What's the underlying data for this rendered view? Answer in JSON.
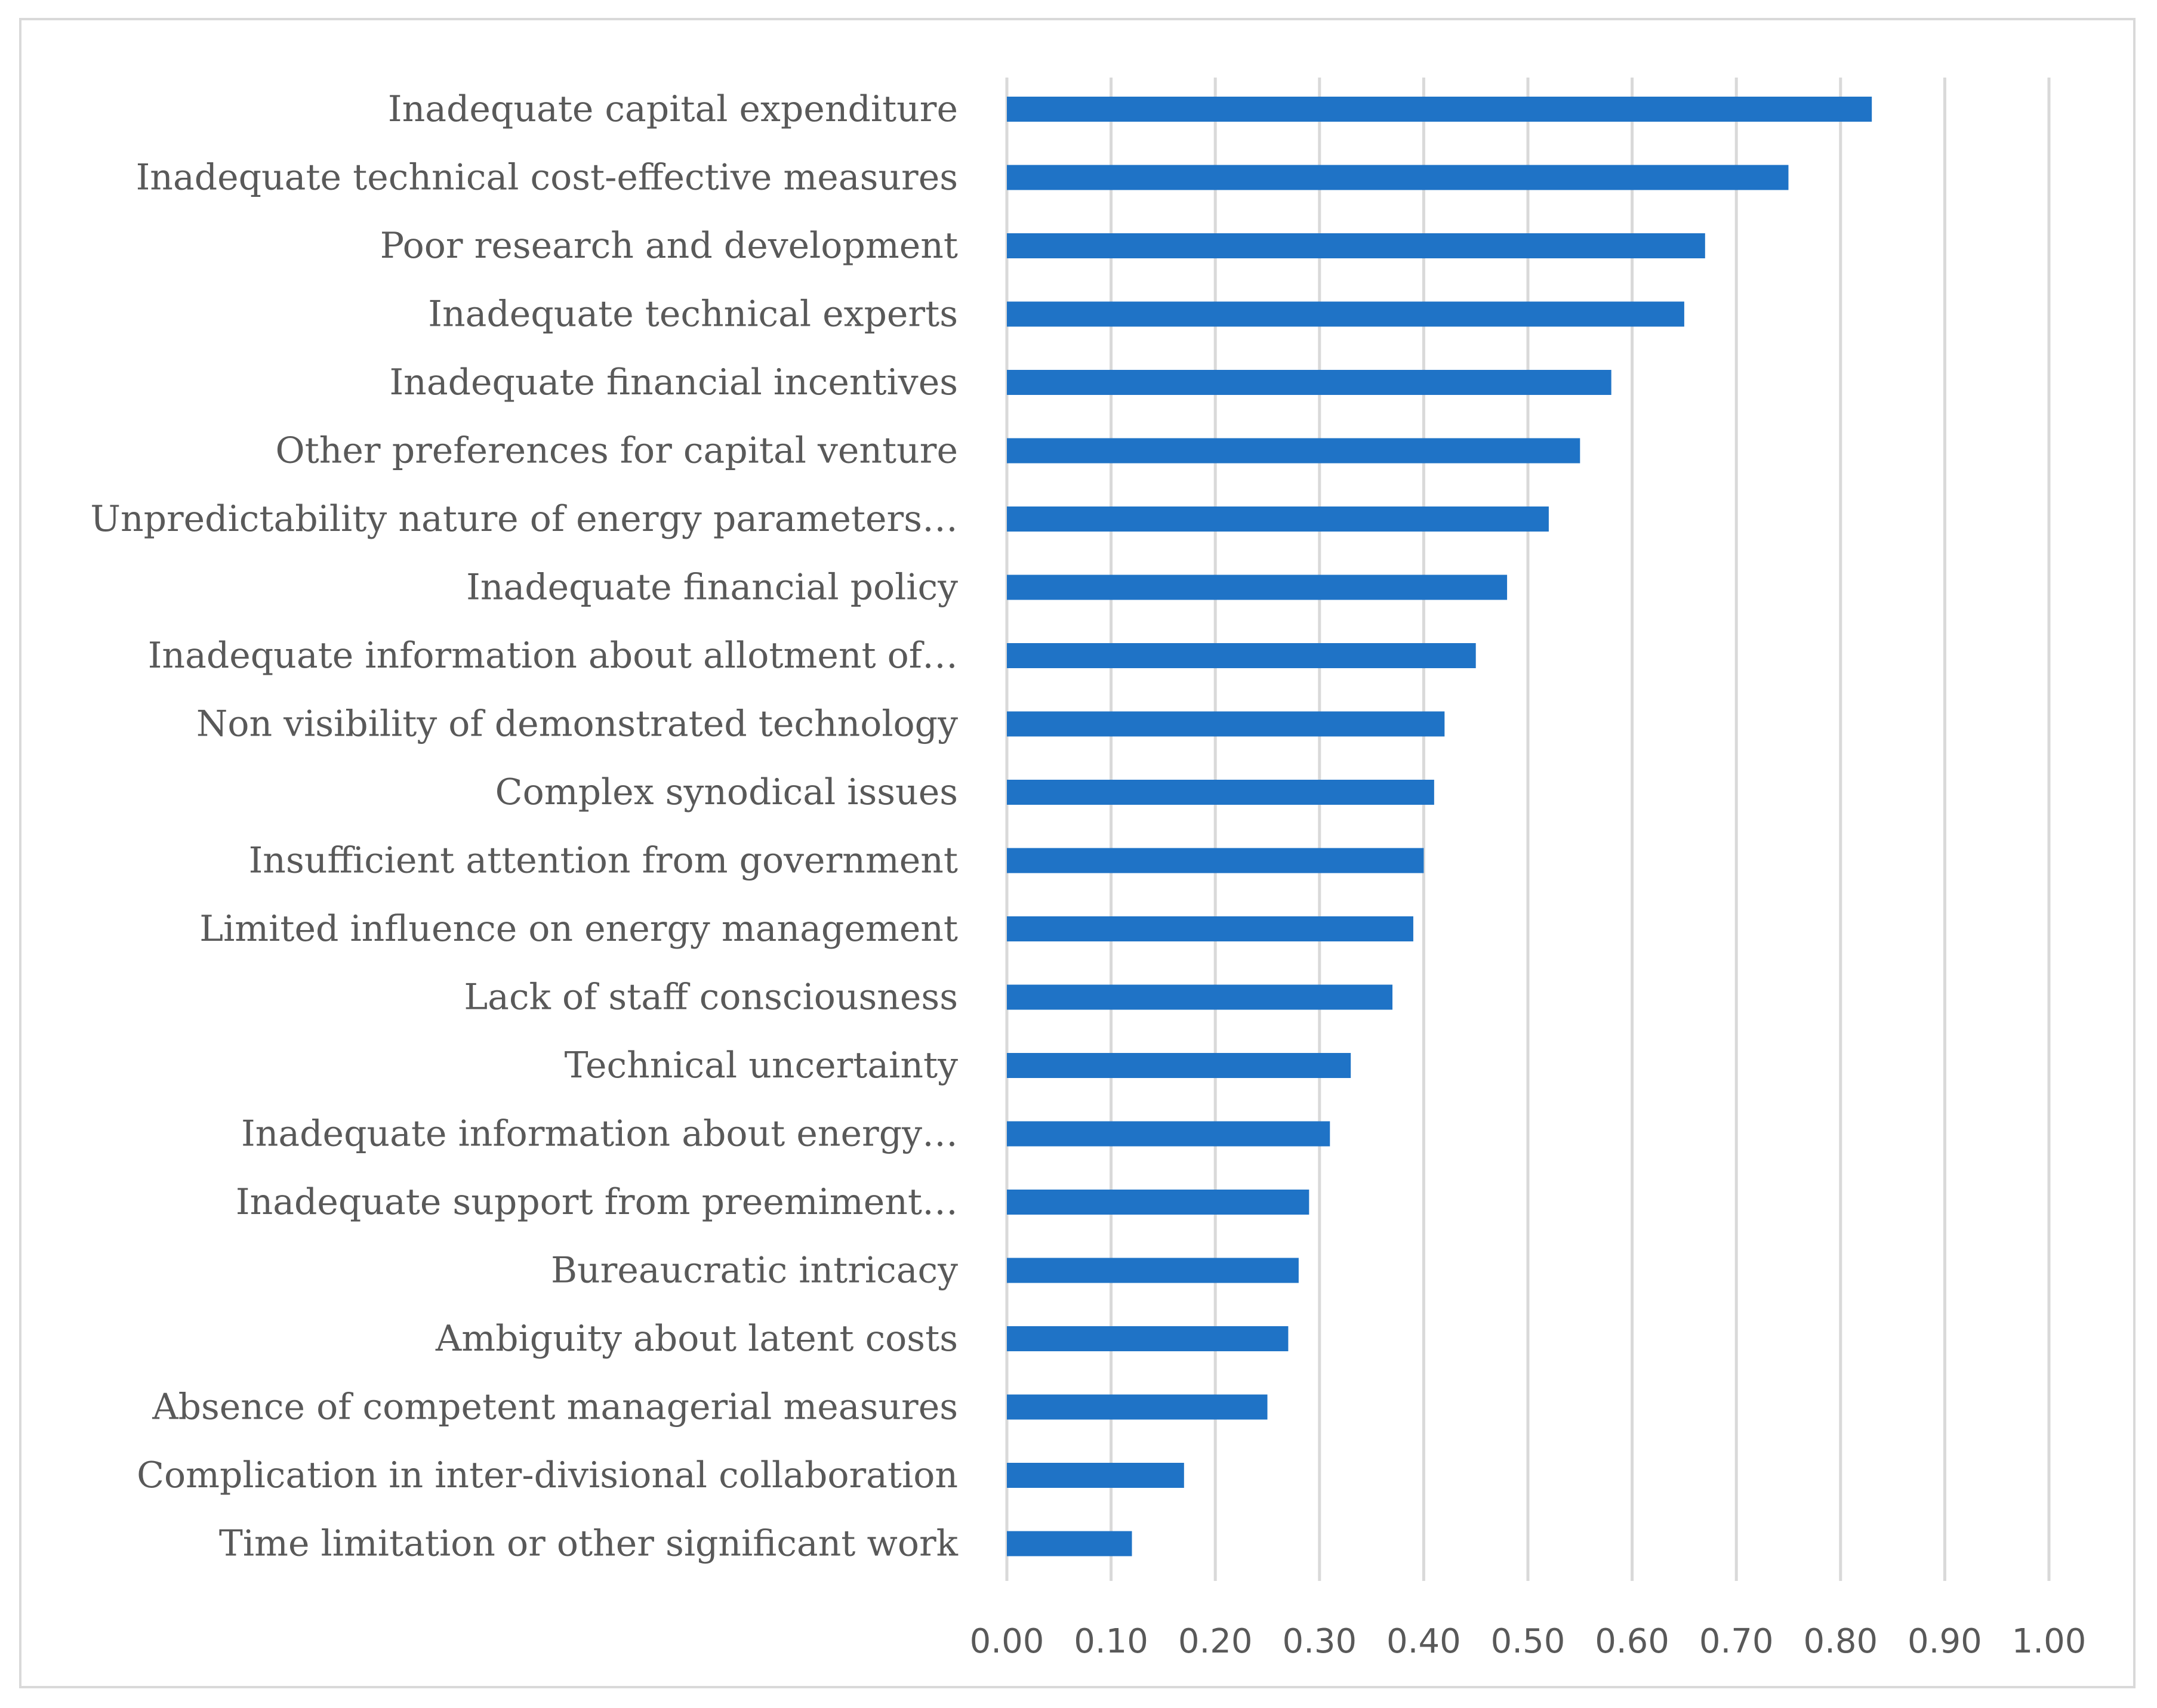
{
  "chart_data": {
    "type": "bar",
    "orientation": "horizontal",
    "title": "",
    "xlabel": "",
    "ylabel": "",
    "xlim": [
      0,
      1.0
    ],
    "grid": true,
    "legend": "none",
    "bar_color": "#1f73c6",
    "grid_color": "#d9d9d9",
    "text_color": "#595959",
    "x_ticks": [
      "0.00",
      "0.10",
      "0.20",
      "0.30",
      "0.40",
      "0.50",
      "0.60",
      "0.70",
      "0.80",
      "0.90",
      "1.00"
    ],
    "categories": [
      "Inadequate capital expenditure",
      "Inadequate technical cost-effective measures",
      "Poor research and development",
      "Inadequate technical experts",
      "Inadequate financial incentives",
      "Other preferences for capital venture",
      "Unpredictability nature of energy parameters…",
      "Inadequate financial policy",
      "Inadequate information about allotment of…",
      "Non visibility of demonstrated technology",
      "Complex synodical issues",
      "Insufficient attention from government",
      "Limited influence on energy management",
      "Lack of staff consciousness",
      "Technical uncertainty",
      "Inadequate information about energy…",
      "Inadequate support from preemiment…",
      "Bureaucratic intricacy",
      "Ambiguity about latent costs",
      "Absence of competent managerial measures",
      "Complication in inter-divisional collaboration",
      "Time limitation or other significant work"
    ],
    "values": [
      0.83,
      0.75,
      0.67,
      0.65,
      0.58,
      0.55,
      0.52,
      0.48,
      0.45,
      0.42,
      0.41,
      0.4,
      0.39,
      0.37,
      0.33,
      0.31,
      0.29,
      0.28,
      0.27,
      0.25,
      0.17,
      0.12
    ]
  }
}
